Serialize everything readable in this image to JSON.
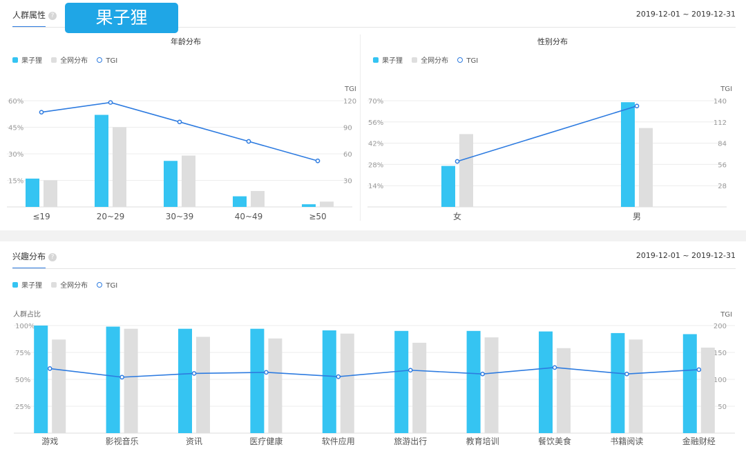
{
  "brand": "果子狸",
  "sections": {
    "crowd": {
      "tab": "人群属性",
      "date_range": "2019-12-01 ~ 2019-12-31"
    },
    "interest": {
      "tab": "兴趣分布",
      "date_range": "2019-12-01 ~ 2019-12-31"
    }
  },
  "legend": {
    "brand": "果子狸",
    "overall": "全网分布",
    "tgi": "TGI"
  },
  "colors": {
    "brand": "#35c4f2",
    "overall": "#dedede",
    "tgi": "#2d7be0",
    "grid": "#ececec",
    "axis": "#dcdcdc"
  },
  "chart_data": [
    {
      "id": "age",
      "type": "bar",
      "title": "年龄分布",
      "categories": [
        "≤19",
        "20~29",
        "30~39",
        "40~49",
        "≥50"
      ],
      "series": [
        {
          "name": "果子狸",
          "values": [
            16,
            52,
            26,
            6,
            1.5
          ]
        },
        {
          "name": "全网分布",
          "values": [
            15,
            45,
            29,
            9,
            3
          ]
        },
        {
          "name": "TGI",
          "axis": "right",
          "line": true,
          "values": [
            107,
            118,
            96,
            74,
            52
          ]
        }
      ],
      "yticks_left": [
        "15%",
        "30%",
        "45%",
        "60%"
      ],
      "ylim_left": [
        0,
        60
      ],
      "yticks_right": [
        "30",
        "60",
        "90",
        "120"
      ],
      "ylim_right": [
        0,
        120
      ],
      "ylabel_left": "",
      "ylabel_right": "TGI"
    },
    {
      "id": "gender",
      "type": "bar",
      "title": "性别分布",
      "categories": [
        "女",
        "男"
      ],
      "series": [
        {
          "name": "果子狸",
          "values": [
            27,
            69
          ]
        },
        {
          "name": "全网分布",
          "values": [
            48,
            52
          ]
        },
        {
          "name": "TGI",
          "axis": "right",
          "line": true,
          "values": [
            60,
            133
          ]
        }
      ],
      "yticks_left": [
        "14%",
        "28%",
        "42%",
        "56%",
        "70%"
      ],
      "ylim_left": [
        0,
        70
      ],
      "yticks_right": [
        "28",
        "56",
        "84",
        "112",
        "140"
      ],
      "ylim_right": [
        0,
        140
      ],
      "ylabel_left": "",
      "ylabel_right": "TGI"
    },
    {
      "id": "interest",
      "type": "bar",
      "title": "",
      "categories": [
        "游戏",
        "影视音乐",
        "资讯",
        "医疗健康",
        "软件应用",
        "旅游出行",
        "教育培训",
        "餐饮美食",
        "书籍阅读",
        "金融财经"
      ],
      "series": [
        {
          "name": "果子狸",
          "values": [
            100,
            99,
            97,
            97,
            95.5,
            95,
            95,
            94.5,
            93,
            92
          ]
        },
        {
          "name": "全网分布",
          "values": [
            87,
            97,
            89.5,
            88,
            92.5,
            84,
            89,
            79,
            87,
            79.5
          ]
        },
        {
          "name": "TGI",
          "axis": "right",
          "line": true,
          "values": [
            120,
            104,
            111,
            113,
            105,
            117,
            110,
            122,
            110,
            118
          ]
        }
      ],
      "yticks_left": [
        "25%",
        "50%",
        "75%",
        "100%"
      ],
      "ylim_left": [
        0,
        100
      ],
      "yticks_right": [
        "50",
        "100",
        "150",
        "200"
      ],
      "ylim_right": [
        0,
        200
      ],
      "ylabel_left": "人群占比",
      "ylabel_right": "TGI"
    }
  ]
}
